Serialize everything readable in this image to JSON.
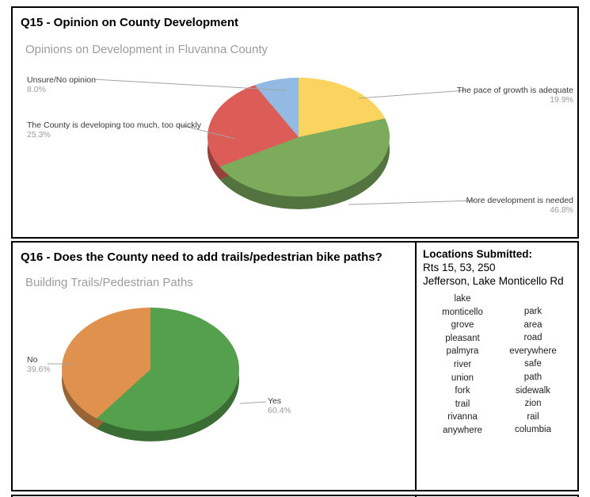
{
  "q15": {
    "title": "Q15 - Opinion on County Development",
    "subtitle": "Opinions on Development in Fluvanna County",
    "callouts": {
      "unsure": {
        "name": "Unsure/No opinion",
        "pct": "8.0%"
      },
      "too_much": {
        "name": "The County is developing too much, too quickly",
        "pct": "25.3%"
      },
      "adequate": {
        "name": "The pace of growth is adequate",
        "pct": "19.9%"
      },
      "more": {
        "name": "More development is needed",
        "pct": "46.8%"
      }
    }
  },
  "q16": {
    "title": "Q16 - Does the County need to add trails/pedestrian bike paths?",
    "subtitle": "Building Trails/Pedestrian Paths",
    "callouts": {
      "no": {
        "name": "No",
        "pct": "39.6%"
      },
      "yes": {
        "name": "Yes",
        "pct": "60.4%"
      }
    }
  },
  "locations": {
    "title": "Locations Submitted:",
    "lines": [
      "Rts 15, 53, 250",
      "Jefferson, Lake Monticello Rd"
    ],
    "col1": [
      "lake",
      "monticello",
      "grove",
      "pleasant",
      "palmyra",
      "river",
      "union",
      "fork",
      "trail",
      "rivanna",
      "anywhere"
    ],
    "col2": [
      "park",
      "area",
      "road",
      "everywhere",
      "safe",
      "path",
      "sidewalk",
      "zion",
      "rail",
      "columbia"
    ]
  },
  "chart_data": [
    {
      "type": "pie",
      "title": "Opinions on Development in Fluvanna County",
      "labels": [
        "The pace of growth is adequate",
        "More development is needed",
        "The County is developing too much, too quickly",
        "Unsure/No opinion"
      ],
      "values": [
        19.9,
        46.8,
        25.3,
        8.0
      ],
      "colors": [
        "#FBD35F",
        "#7CAB5C",
        "#DC5C58",
        "#92BAE2"
      ],
      "start_angle_deg": 0,
      "direction": "clockwise",
      "style": "3d"
    },
    {
      "type": "pie",
      "title": "Building Trails/Pedestrian Paths",
      "labels": [
        "Yes",
        "No"
      ],
      "values": [
        60.4,
        39.6
      ],
      "colors": [
        "#55A04D",
        "#E0914E"
      ],
      "start_angle_deg": 0,
      "direction": "clockwise",
      "style": "3d"
    }
  ]
}
